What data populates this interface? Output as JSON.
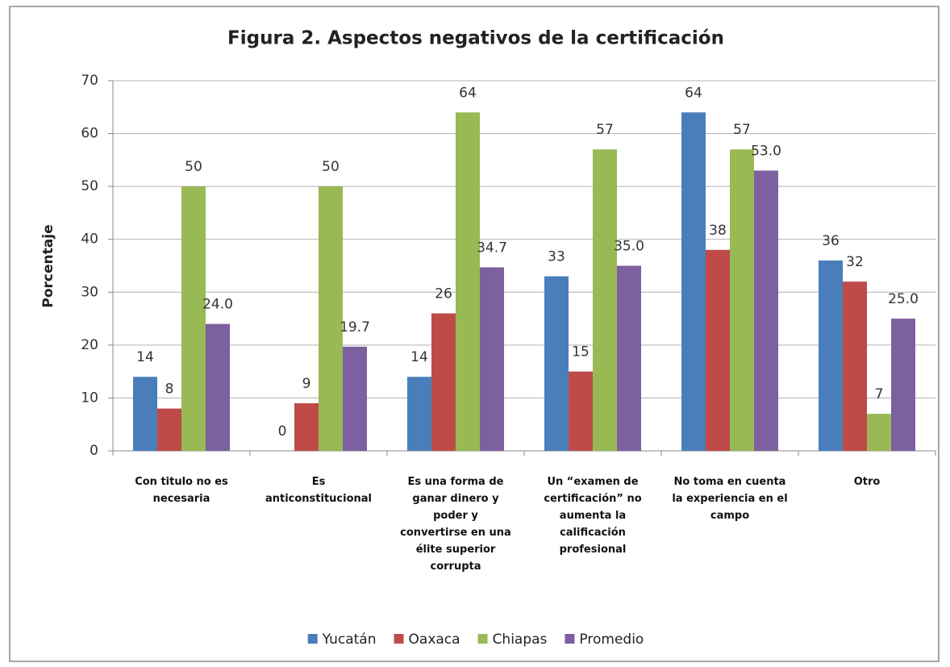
{
  "chart_data": {
    "type": "bar",
    "title": "Figura 2. Aspectos negativos de la certificación",
    "y_label": "Porcentaje",
    "categories": [
      "Con titulo no es necesaria",
      "Es anticonstitucional",
      "Es una forma de ganar dinero y poder y convertirse en una élite superior corrupta",
      "Un “examen de certificación” no aumenta la calificación profesional",
      "No toma en cuenta la experiencia en el campo",
      "Otro"
    ],
    "series": [
      {
        "name": "Yucatán",
        "color": "#4a7ebb",
        "values": [
          14,
          0,
          14,
          33,
          64,
          36
        ]
      },
      {
        "name": "Oaxaca",
        "color": "#be4b48",
        "values": [
          8,
          9,
          26,
          15,
          38,
          32
        ]
      },
      {
        "name": "Chiapas",
        "color": "#98b954",
        "values": [
          50,
          50,
          64,
          57,
          57,
          7
        ]
      },
      {
        "name": "Promedio",
        "color": "#7d60a0",
        "values": [
          24,
          19.7,
          34.7,
          35,
          53,
          25
        ],
        "value_labels": [
          "24.0",
          "19.7",
          "34.7",
          "35.0",
          "53.0",
          "25.0"
        ]
      }
    ],
    "ylim": [
      0,
      70
    ],
    "yticks": [
      0,
      10,
      20,
      30,
      40,
      50,
      60,
      70
    ],
    "grid": true,
    "legend": "bottom"
  }
}
